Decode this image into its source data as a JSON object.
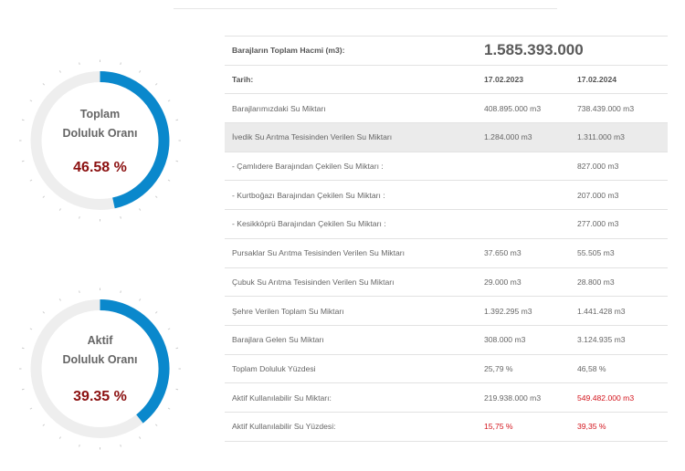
{
  "gauges": [
    {
      "label_line1": "Toplam",
      "label_line2": "Doluluk Oranı",
      "value_text": "46.58 %",
      "fraction": 0.4658
    },
    {
      "label_line1": "Aktif",
      "label_line2": "Doluluk Oranı",
      "value_text": "39.35 %",
      "fraction": 0.3935
    }
  ],
  "table": {
    "total_label": "Barajların Toplam Hacmi (m3):",
    "total_value": "1.585.393.000",
    "date_label": "Tarih:",
    "date1": "17.02.2023",
    "date2": "17.02.2024",
    "rows": [
      {
        "label": "Barajlarımızdaki Su Miktarı",
        "v1": "408.895.000 m3",
        "v2": "738.439.000 m3"
      },
      {
        "label": "İvedik Su Arıtma Tesisinden Verilen Su Miktarı",
        "v1": "1.284.000 m3",
        "v2": "1.311.000 m3"
      },
      {
        "label": "- Çamlıdere Barajından Çekilen Su Miktarı :",
        "v1": "",
        "v2": "827.000 m3"
      },
      {
        "label": "- Kurtboğazı Barajından Çekilen Su Miktarı :",
        "v1": "",
        "v2": "207.000 m3"
      },
      {
        "label": "- Kesikköprü Barajından Çekilen Su Miktarı :",
        "v1": "",
        "v2": "277.000 m3"
      },
      {
        "label": "Pursaklar Su Arıtma Tesisinden Verilen Su Miktarı",
        "v1": "37.650 m3",
        "v2": "55.505 m3"
      },
      {
        "label": "Çubuk Su Arıtma Tesisinden Verilen Su Miktarı",
        "v1": "29.000 m3",
        "v2": "28.800 m3"
      },
      {
        "label": "Şehre Verilen Toplam Su Miktarı",
        "v1": "1.392.295 m3",
        "v2": "1.441.428 m3"
      },
      {
        "label": "Barajlara Gelen Su Miktarı",
        "v1": "308.000 m3",
        "v2": "3.124.935 m3"
      },
      {
        "label": "Toplam Doluluk Yüzdesi",
        "v1": "25,79 %",
        "v2": "46,58 %"
      },
      {
        "label": "Aktif Kullanılabilir Su Miktarı:",
        "v1": "219.938.000 m3",
        "v2": "549.482.000 m3"
      },
      {
        "label": "Aktif Kullanılabilir Su Yüzdesi:",
        "v1": "15,75 %",
        "v2": "39,35 %"
      }
    ]
  },
  "colors": {
    "gauge_fill": "#0a88cc",
    "gauge_track": "#eeeeee",
    "percent_text": "#8b1010",
    "highlight_red": "#d3141c"
  }
}
